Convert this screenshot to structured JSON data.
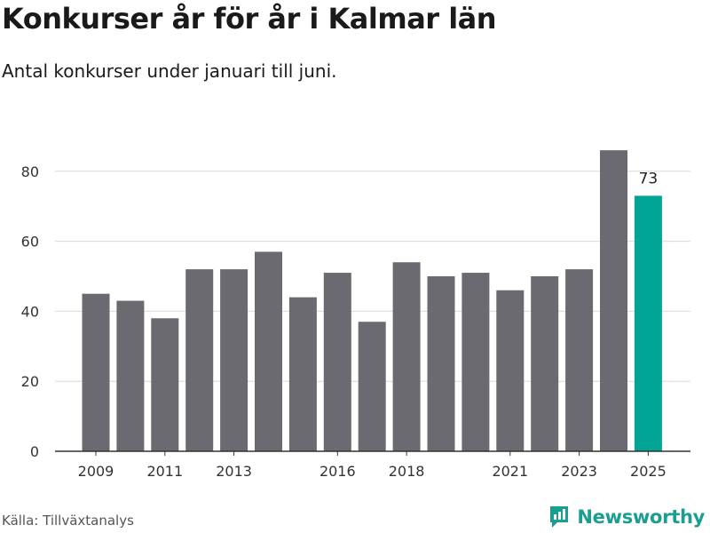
{
  "header": {
    "title": "Konkurser år för år i Kalmar län",
    "subtitle": "Antal konkurser under januari till juni."
  },
  "footer": {
    "source": "Källa: Tillväxtanalys",
    "brand": "Newsworthy",
    "brand_icon": "newsworthy-logo-icon"
  },
  "colors": {
    "bar": "#6b6a70",
    "highlight": "#00a596",
    "grid": "#d9d9d9",
    "brand": "#1a9e8f"
  },
  "chart_data": {
    "type": "bar",
    "title": "Konkurser år för år i Kalmar län",
    "subtitle": "Antal konkurser under januari till juni.",
    "xlabel": "",
    "ylabel": "",
    "categories": [
      "2009",
      "2010",
      "2011",
      "2012",
      "2013",
      "2014",
      "2015",
      "2016",
      "2017",
      "2018",
      "2019",
      "2020",
      "2021",
      "2022",
      "2023",
      "2024",
      "2025"
    ],
    "values": [
      45,
      43,
      38,
      52,
      52,
      57,
      44,
      51,
      37,
      54,
      50,
      51,
      46,
      50,
      52,
      86,
      73
    ],
    "x_tick_labels": [
      "2009",
      "2011",
      "2013",
      "2016",
      "2018",
      "2021",
      "2023",
      "2025"
    ],
    "yticks": [
      0,
      20,
      40,
      60,
      80
    ],
    "ylim": [
      0,
      86
    ],
    "grid": true,
    "legend": "none",
    "highlight_index": 16,
    "data_labels": [
      {
        "index": 16,
        "text": "73"
      }
    ]
  }
}
